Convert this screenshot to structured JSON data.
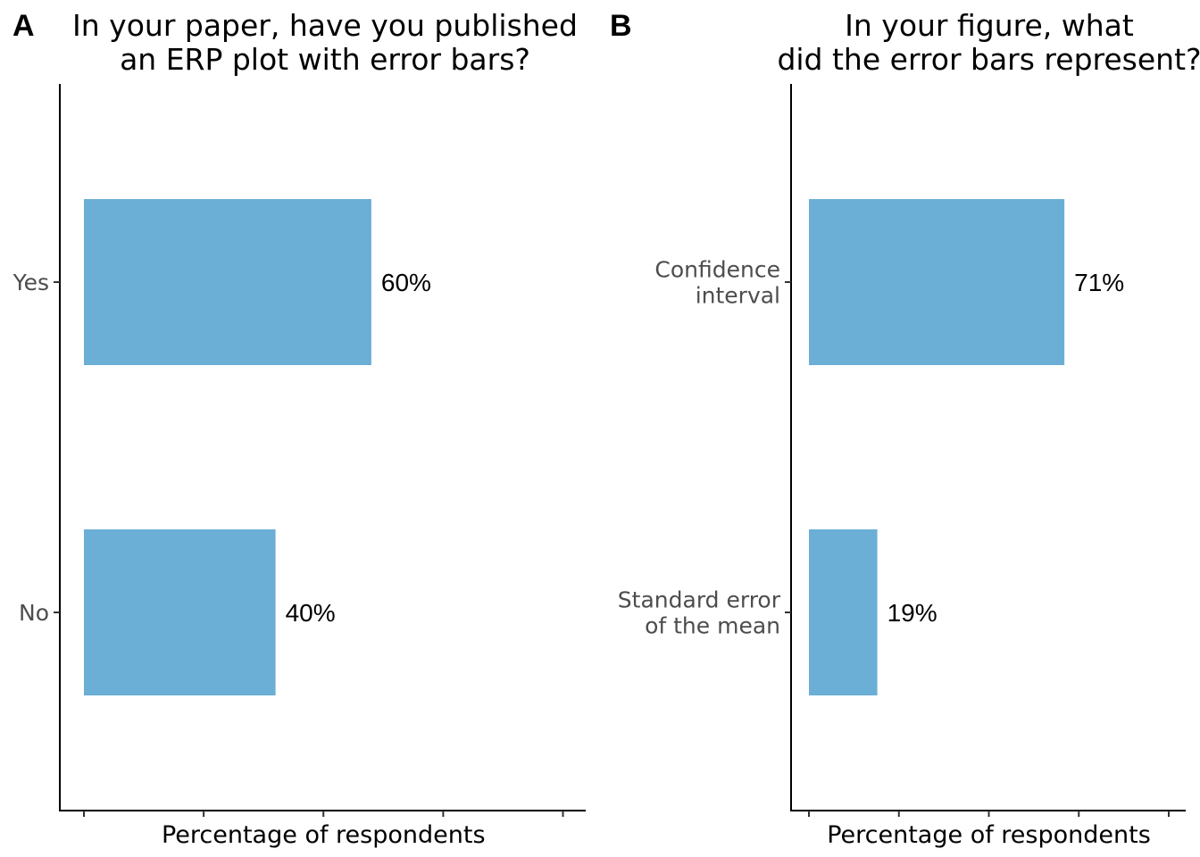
{
  "chart_data": [
    {
      "panel": "A",
      "type": "bar",
      "orientation": "horizontal",
      "title": "In your paper, have you published an ERP plot with error bars?",
      "title_lines": [
        "In your paper, have you published",
        "an ERP plot with error bars?"
      ],
      "xlabel": "Percentage of respondents",
      "ylabel": "",
      "categories": [
        "Yes",
        "No"
      ],
      "category_lines": [
        [
          "Yes"
        ],
        [
          "No"
        ]
      ],
      "values": [
        60,
        40
      ],
      "data_labels": [
        "60%",
        "40%"
      ],
      "xlim": [
        0,
        100
      ],
      "grid": false,
      "legend": "none",
      "bar_color": "#6baed6"
    },
    {
      "panel": "B",
      "type": "bar",
      "orientation": "horizontal",
      "title": "In your figure, what did the error bars represent?",
      "title_lines": [
        "In your figure, what",
        "did the error bars represent?"
      ],
      "xlabel": "Percentage of respondents",
      "ylabel": "",
      "categories": [
        "Confidence interval",
        "Standard error of the mean"
      ],
      "category_lines": [
        [
          "Confidence",
          "interval"
        ],
        [
          "Standard error",
          "of the mean"
        ]
      ],
      "values": [
        71,
        19
      ],
      "data_labels": [
        "71%",
        "19%"
      ],
      "xlim": [
        0,
        100
      ],
      "grid": false,
      "legend": "none",
      "bar_color": "#6baed6"
    }
  ]
}
